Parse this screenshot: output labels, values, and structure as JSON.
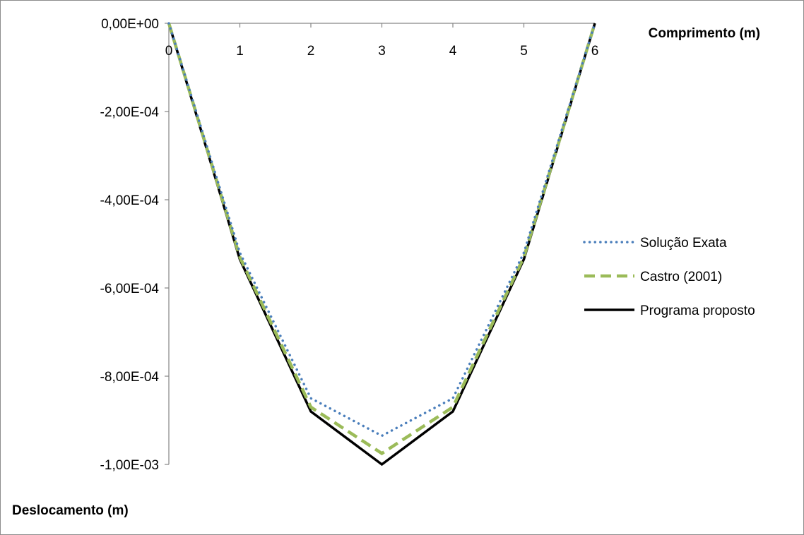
{
  "chart_data": {
    "type": "line",
    "xlabel": "Comprimento (m)",
    "ylabel": "Deslocamento (m)",
    "x_ticks": [
      "0",
      "1",
      "2",
      "3",
      "4",
      "5",
      "6"
    ],
    "y_ticks": [
      "0,00E+00",
      "-2,00E-04",
      "-4,00E-04",
      "-6,00E-04",
      "-8,00E-04",
      "-1,00E-03"
    ],
    "xlim": [
      0,
      6
    ],
    "ylim": [
      -0.001,
      0
    ],
    "x_axis_position": "top",
    "grid": false,
    "legend_position": "right",
    "x": [
      0,
      1,
      2,
      3,
      4,
      5,
      6
    ],
    "series": [
      {
        "name": "Solução Exata",
        "values": [
          0,
          -0.00052,
          -0.00085,
          -0.000935,
          -0.00085,
          -0.00052,
          0
        ],
        "color": "#4a7ebb",
        "style": "dotted"
      },
      {
        "name": "Castro (2001)",
        "values": [
          0,
          -0.00053,
          -0.00087,
          -0.000975,
          -0.00087,
          -0.00053,
          0
        ],
        "color": "#9bbb59",
        "style": "dashed"
      },
      {
        "name": "Programa proposto",
        "values": [
          0,
          -0.000535,
          -0.00088,
          -0.001,
          -0.00088,
          -0.000535,
          0
        ],
        "color": "#000000",
        "style": "solid"
      }
    ]
  }
}
